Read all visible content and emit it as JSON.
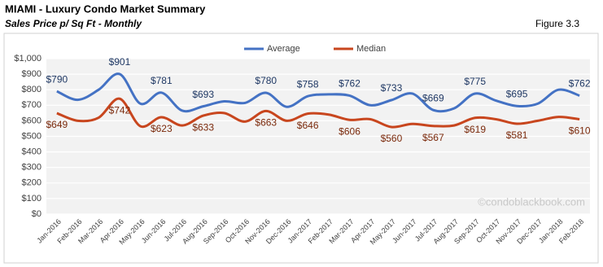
{
  "chart_data": {
    "type": "line",
    "title": "MIAMI - Luxury Condo Market Summary",
    "subtitle": "Sales Price  p/ Sq Ft - Monthly",
    "figure_label": "Figure 3.3",
    "watermark": "©condoblackbook.com",
    "categories": [
      "Jan-2016",
      "Feb-2016",
      "Mar-2016",
      "Apr-2016",
      "May-2016",
      "Jun-2016",
      "Jul-2016",
      "Aug-2016",
      "Sep-2016",
      "Oct-2016",
      "Nov-2016",
      "Dec-2016",
      "Jan-2017",
      "Feb-2017",
      "Mar-2017",
      "Apr-2017",
      "May-2017",
      "Jun-2017",
      "Jul-2017",
      "Aug-2017",
      "Sep-2017",
      "Oct-2017",
      "Nov-2017",
      "Dec-2017",
      "Jan-2018",
      "Feb-2018"
    ],
    "series": [
      {
        "name": "Average",
        "color": "#4472c4",
        "label_color": "#1f3864",
        "values": [
          790,
          735,
          800,
          901,
          710,
          781,
          665,
          693,
          725,
          715,
          780,
          690,
          758,
          770,
          762,
          700,
          733,
          775,
          669,
          680,
          775,
          730,
          695,
          710,
          800,
          762
        ],
        "value_labels": [
          "$790",
          null,
          null,
          "$901",
          null,
          "$781",
          null,
          "$693",
          null,
          null,
          "$780",
          null,
          "$758",
          null,
          "$762",
          null,
          "$733",
          null,
          "$669",
          null,
          "$775",
          null,
          "$695",
          null,
          null,
          "$762"
        ]
      },
      {
        "name": "Median",
        "color": "#c8461e",
        "label_color": "#7b2a0c",
        "values": [
          649,
          600,
          620,
          742,
          565,
          623,
          570,
          633,
          650,
          595,
          663,
          600,
          646,
          640,
          606,
          610,
          560,
          580,
          567,
          570,
          619,
          610,
          581,
          600,
          625,
          610
        ],
        "value_labels": [
          "$649",
          null,
          null,
          "$742",
          null,
          "$623",
          null,
          "$633",
          null,
          null,
          "$663",
          null,
          "$646",
          null,
          "$606",
          null,
          "$560",
          null,
          "$567",
          null,
          "$619",
          null,
          "$581",
          null,
          null,
          "$610"
        ]
      }
    ],
    "ylim": [
      0,
      1000
    ],
    "yticks": [
      {
        "value": 0,
        "label": "$0"
      },
      {
        "value": 100,
        "label": "$100"
      },
      {
        "value": 200,
        "label": "$200"
      },
      {
        "value": 300,
        "label": "$300"
      },
      {
        "value": 400,
        "label": "$400"
      },
      {
        "value": 500,
        "label": "$500"
      },
      {
        "value": 600,
        "label": "$600"
      },
      {
        "value": 700,
        "label": "$700"
      },
      {
        "value": 800,
        "label": "$800"
      },
      {
        "value": 900,
        "label": "$900"
      },
      {
        "value": 1000,
        "label": "$1,000"
      }
    ],
    "grid": true,
    "legend": "top"
  }
}
